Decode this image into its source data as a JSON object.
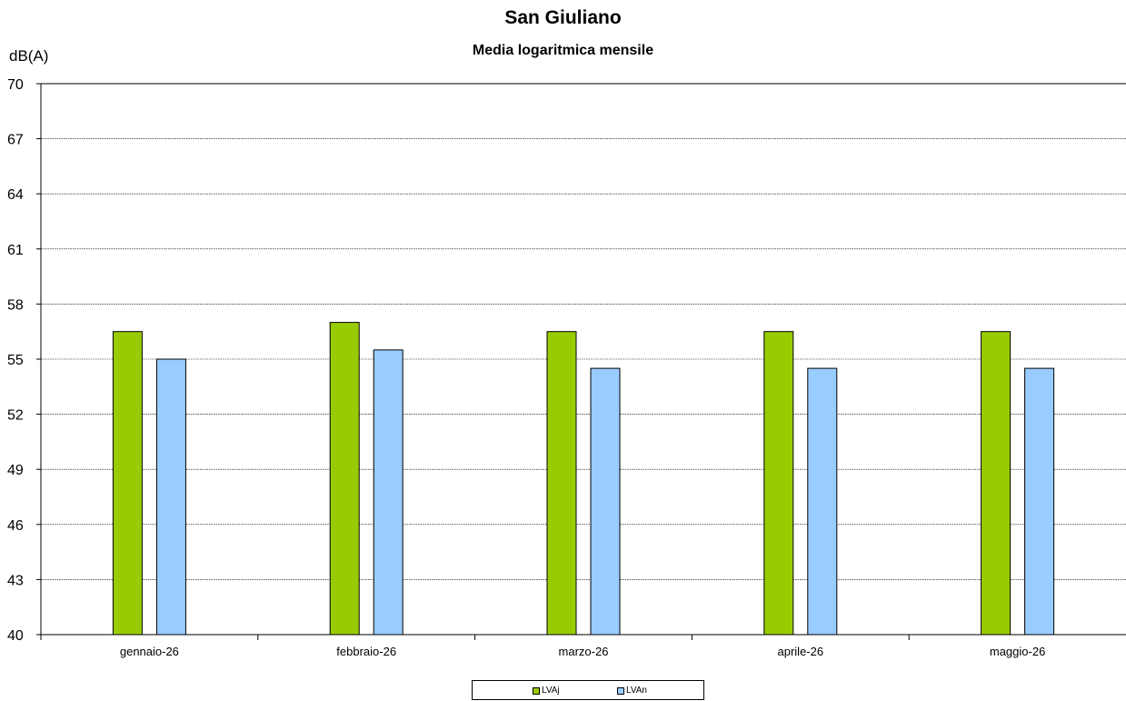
{
  "chart_data": {
    "type": "bar",
    "title": "San Giuliano",
    "subtitle": "Media logaritmica mensile",
    "ylabel": "dB(A)",
    "xlabel": "",
    "ylim": [
      40,
      70
    ],
    "yticks": [
      40,
      43,
      46,
      49,
      52,
      55,
      58,
      61,
      64,
      67,
      70
    ],
    "grid": true,
    "legend_position": "bottom",
    "categories": [
      "gennaio-26",
      "febbraio-26",
      "marzo-26",
      "aprile-26",
      "maggio-26"
    ],
    "series": [
      {
        "name": "LVAj",
        "color": "#99cc00",
        "values": [
          56.5,
          57.0,
          56.5,
          56.5,
          56.5
        ]
      },
      {
        "name": "LVAn",
        "color": "#99ccff",
        "values": [
          55.0,
          55.5,
          54.5,
          54.5,
          54.5
        ]
      }
    ]
  }
}
